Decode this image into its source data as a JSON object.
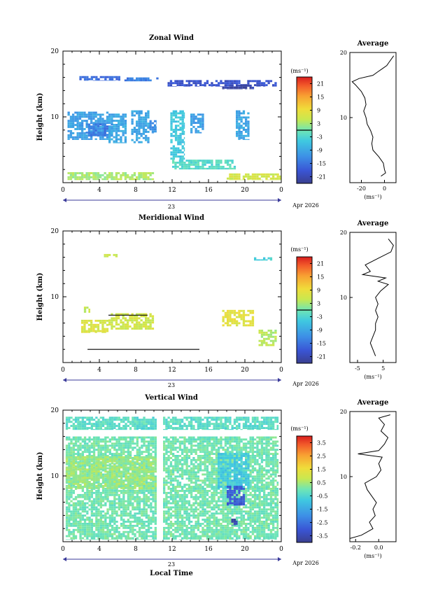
{
  "figure": {
    "date_label": "Apr 2026",
    "x_axis_label": "Local Time",
    "day_label": "23",
    "y_axis_label": "Height (km)",
    "y_ticks": [
      "20",
      "10"
    ],
    "x_ticks": [
      "0",
      "4",
      "8",
      "12",
      "16",
      "20",
      "0"
    ]
  },
  "chart_data": [
    {
      "type": "heatmap",
      "title": "Zonal Wind",
      "xlabel": "",
      "ylabel": "Height (km)",
      "xlim": [
        0,
        24
      ],
      "ylim": [
        0,
        20
      ],
      "colorbar": {
        "unit": "(ms⁻¹)",
        "ticks": [
          "21",
          "15",
          "9",
          "3",
          "-3",
          "-9",
          "-15",
          "-21"
        ],
        "range": [
          -24,
          24
        ],
        "zero_line": true
      },
      "profile": {
        "title": "Average",
        "xlim": [
          -30,
          10
        ],
        "x_ticks": [
          "-20",
          "0"
        ],
        "xlabel": "(ms⁻¹)",
        "y_ticks": [
          "20",
          "10"
        ],
        "heights": [
          1,
          1.5,
          2,
          3,
          4,
          5,
          6,
          7,
          8,
          9,
          10,
          11,
          12,
          13,
          14,
          15,
          15.5,
          16,
          16.5,
          17,
          17.5,
          18,
          18.5,
          19,
          19.5
        ],
        "values": [
          -3,
          1,
          0,
          -1,
          -5,
          -10,
          -11,
          -10,
          -12,
          -15,
          -16,
          -18,
          -16,
          -17,
          -20,
          -25,
          -28,
          -22,
          -10,
          -6,
          -2,
          2,
          4,
          6,
          8
        ]
      },
      "blocks": [
        {
          "t0": 1.8,
          "t1": 6.5,
          "h0": 15.5,
          "h1": 16.2,
          "v": -16
        },
        {
          "t0": 6.5,
          "t1": 10.5,
          "h0": 15.4,
          "h1": 16.0,
          "v": -14
        },
        {
          "t0": 11.5,
          "t1": 23.5,
          "h0": 14.6,
          "h1": 15.6,
          "v": -19
        },
        {
          "t0": 17.5,
          "t1": 21.0,
          "h0": 14.2,
          "h1": 14.9,
          "v": -22
        },
        {
          "t0": 0.5,
          "t1": 5.0,
          "h0": 6.5,
          "h1": 10.8,
          "v": -10
        },
        {
          "t0": 2.5,
          "t1": 5.5,
          "h0": 7.0,
          "h1": 9.0,
          "v": -14
        },
        {
          "t0": 5.0,
          "t1": 7.0,
          "h0": 6.0,
          "h1": 10.5,
          "v": -9
        },
        {
          "t0": 7.5,
          "t1": 9.5,
          "h0": 6.0,
          "h1": 11.0,
          "v": -9
        },
        {
          "t0": 9.5,
          "t1": 10.3,
          "h0": 7.5,
          "h1": 9.5,
          "v": -12
        },
        {
          "t0": 11.8,
          "t1": 13.4,
          "h0": 3.5,
          "h1": 11.0,
          "v": -5
        },
        {
          "t0": 14.0,
          "t1": 15.5,
          "h0": 7.5,
          "h1": 10.5,
          "v": -10
        },
        {
          "t0": 19.0,
          "t1": 20.5,
          "h0": 6.5,
          "h1": 11.0,
          "v": -9
        },
        {
          "t0": 0.5,
          "t1": 10.0,
          "h0": 0.4,
          "h1": 1.6,
          "v": 3
        },
        {
          "t0": 12.0,
          "t1": 19.0,
          "h0": 2.0,
          "h1": 3.5,
          "v": -2
        },
        {
          "t0": 18.0,
          "t1": 24.0,
          "h0": 0.4,
          "h1": 1.4,
          "v": 6
        }
      ]
    },
    {
      "type": "heatmap",
      "title": "Meridional Wind",
      "xlabel": "",
      "ylabel": "Height (km)",
      "xlim": [
        0,
        24
      ],
      "ylim": [
        0,
        20
      ],
      "colorbar": {
        "unit": "(ms⁻¹)",
        "ticks": [
          "21",
          "15",
          "9",
          "3",
          "-3",
          "-9",
          "-15",
          "-21"
        ],
        "range": [
          -24,
          24
        ],
        "zero_line": true
      },
      "profile": {
        "title": "Average",
        "xlim": [
          -8,
          10
        ],
        "x_ticks": [
          "-5",
          "5"
        ],
        "xlabel": "(ms⁻¹)",
        "y_ticks": [
          "20",
          "10"
        ],
        "heights": [
          1,
          2,
          3,
          4,
          5,
          6,
          7,
          8,
          9,
          10,
          11,
          12,
          12.5,
          13,
          13.5,
          14,
          15,
          16,
          17,
          18,
          19
        ],
        "values": [
          2,
          1,
          0,
          1,
          2,
          2,
          3,
          2,
          3,
          2,
          4,
          7,
          3,
          6,
          -3,
          0,
          -2,
          3,
          8,
          9,
          7
        ]
      },
      "blocks": [
        {
          "t0": 2.0,
          "t1": 5.0,
          "h0": 4.5,
          "h1": 6.5,
          "v": 7
        },
        {
          "t0": 5.0,
          "t1": 10.0,
          "h0": 5.0,
          "h1": 7.5,
          "v": 6
        },
        {
          "t0": 2.3,
          "t1": 3.0,
          "h0": 7.5,
          "h1": 8.5,
          "v": 5
        },
        {
          "t0": 17.5,
          "t1": 21.0,
          "h0": 5.5,
          "h1": 8.0,
          "v": 8
        },
        {
          "t0": 21.5,
          "t1": 23.5,
          "h0": 2.5,
          "h1": 5.0,
          "v": 4
        },
        {
          "t0": 4.5,
          "t1": 6.0,
          "h0": 16.0,
          "h1": 16.5,
          "v": 5
        },
        {
          "t0": 21.0,
          "t1": 23.0,
          "h0": 15.5,
          "h1": 16.0,
          "v": -4
        }
      ],
      "lines": [
        {
          "t0": 2.7,
          "t1": 15.0,
          "h": 2.0
        },
        {
          "t0": 5.0,
          "t1": 9.3,
          "h": 7.2
        }
      ]
    },
    {
      "type": "heatmap",
      "title": "Vertical Wind",
      "xlabel": "Local Time",
      "ylabel": "Height (km)",
      "xlim": [
        0,
        24
      ],
      "ylim": [
        0,
        20
      ],
      "colorbar": {
        "unit": "(ms⁻¹)",
        "ticks": [
          "3.5",
          "2.5",
          "1.5",
          "0.5",
          "-0.5",
          "-1.5",
          "-2.5",
          "-3.5"
        ],
        "range": [
          -4,
          4
        ],
        "zero_line": false
      },
      "profile": {
        "title": "Average",
        "xlim": [
          -0.25,
          0.15
        ],
        "x_ticks": [
          "-0.2",
          "0.0"
        ],
        "xlabel": "(ms⁻¹)",
        "y_ticks": [
          "20",
          "10"
        ],
        "heights": [
          0.5,
          1,
          2,
          3,
          4,
          5,
          6,
          7,
          8,
          9,
          10,
          11,
          12,
          13,
          13.5,
          14,
          15,
          16,
          17,
          18,
          19,
          19.5
        ],
        "values": [
          -0.25,
          -0.15,
          -0.05,
          -0.08,
          -0.03,
          -0.05,
          -0.02,
          -0.06,
          -0.1,
          -0.12,
          -0.02,
          0.02,
          0.0,
          0.03,
          -0.18,
          0.0,
          0.05,
          0.08,
          0.02,
          0.05,
          0.0,
          0.1
        ]
      },
      "gap": {
        "t0": 10.3,
        "t1": 11.0
      },
      "blocks": [
        {
          "t0": 0.3,
          "t1": 10.3,
          "h0": 17.0,
          "h1": 19.0,
          "v": -0.3
        },
        {
          "t0": 11.0,
          "t1": 23.7,
          "h0": 17.0,
          "h1": 19.0,
          "v": -0.3
        },
        {
          "t0": 0.3,
          "t1": 10.3,
          "h0": 0.3,
          "h1": 16.0,
          "v": 0.0
        },
        {
          "t0": 11.0,
          "t1": 23.7,
          "h0": 0.3,
          "h1": 16.0,
          "v": 0.0
        },
        {
          "t0": 0.3,
          "t1": 10.3,
          "h0": 8.0,
          "h1": 13.0,
          "v": 0.4
        },
        {
          "t0": 17.0,
          "t1": 20.5,
          "h0": 8.0,
          "h1": 13.5,
          "v": -0.8
        },
        {
          "t0": 18.0,
          "t1": 20.0,
          "h0": 5.5,
          "h1": 8.5,
          "v": -3.0
        },
        {
          "t0": 18.5,
          "t1": 19.2,
          "h0": 2.5,
          "h1": 3.5,
          "v": -3.5
        }
      ]
    }
  ]
}
